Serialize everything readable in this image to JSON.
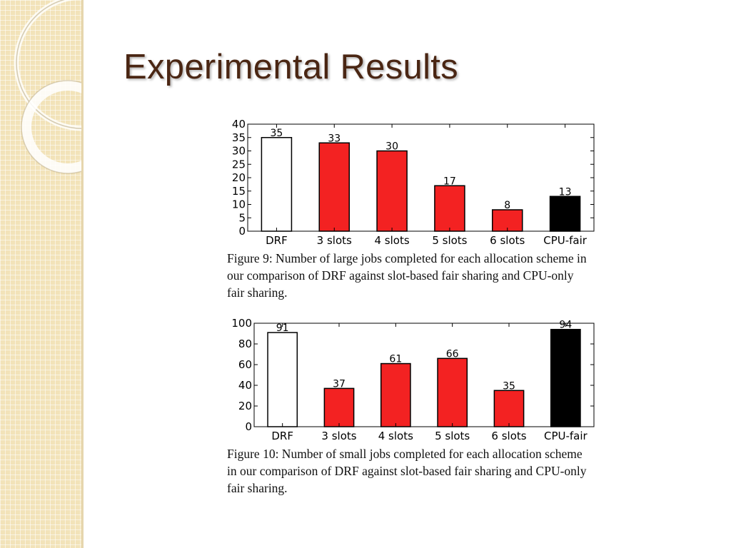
{
  "slide": {
    "title": "Experimental Results"
  },
  "colors": {
    "band": "#f2e3b9",
    "title": "#4a2613",
    "drf": "#ffffff",
    "slots": "#f32222",
    "cpu_fair": "#000000"
  },
  "chart_data": [
    {
      "type": "bar",
      "title": "",
      "xlabel": "",
      "ylabel": "",
      "categories": [
        "DRF",
        "3 slots",
        "4 slots",
        "5 slots",
        "6 slots",
        "CPU-fair"
      ],
      "values": [
        35,
        33,
        30,
        17,
        8,
        13
      ],
      "data_labels": [
        "35",
        "33",
        "30",
        "17",
        "8",
        "13"
      ],
      "bar_colors": [
        "#ffffff",
        "#f32222",
        "#f32222",
        "#f32222",
        "#f32222",
        "#000000"
      ],
      "ylim": [
        0,
        40
      ],
      "yticks": [
        0,
        5,
        10,
        15,
        20,
        25,
        30,
        35,
        40
      ],
      "grid": false,
      "caption": "Figure 9:  Number of large jobs completed for each allocation scheme in our comparison of DRF against slot-based fair sharing and CPU-only fair sharing."
    },
    {
      "type": "bar",
      "title": "",
      "xlabel": "",
      "ylabel": "",
      "categories": [
        "DRF",
        "3 slots",
        "4 slots",
        "5 slots",
        "6 slots",
        "CPU-fair"
      ],
      "values": [
        91,
        37,
        61,
        66,
        35,
        94
      ],
      "data_labels": [
        "91",
        "37",
        "61",
        "66",
        "35",
        "94"
      ],
      "bar_colors": [
        "#ffffff",
        "#f32222",
        "#f32222",
        "#f32222",
        "#f32222",
        "#000000"
      ],
      "ylim": [
        0,
        100
      ],
      "yticks": [
        0,
        20,
        40,
        60,
        80,
        100
      ],
      "grid": false,
      "caption": "Figure 10:  Number of small jobs completed for each allocation scheme in our comparison of DRF against slot-based fair sharing and CPU-only fair sharing."
    }
  ]
}
